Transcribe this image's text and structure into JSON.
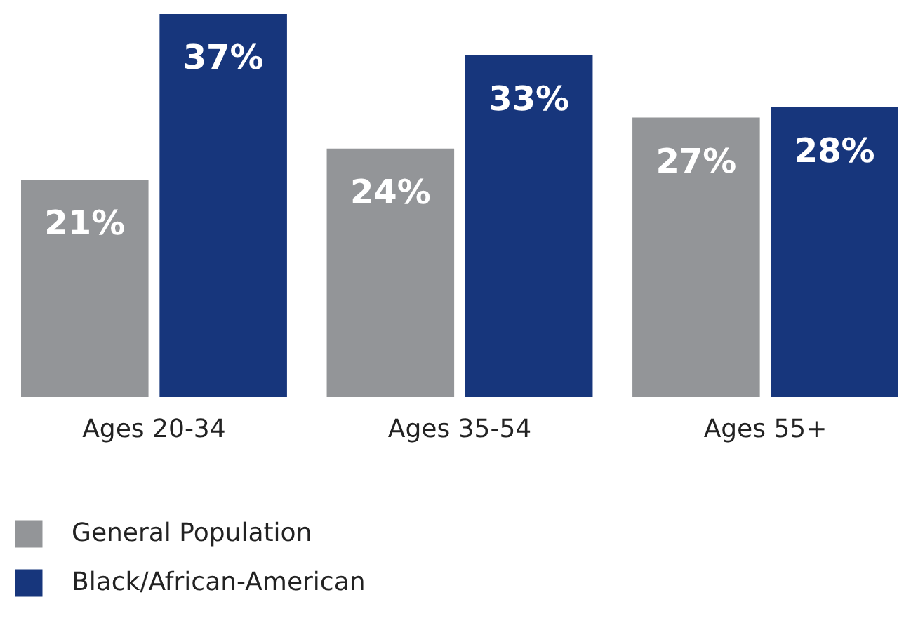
{
  "chart_data": {
    "type": "bar",
    "categories": [
      "Ages 20-34",
      "Ages 35-54",
      "Ages 55+"
    ],
    "series": [
      {
        "name": "General Population",
        "color": "#939598",
        "values": [
          21,
          24,
          27
        ],
        "value_labels": [
          "21%",
          "24%",
          "27%"
        ]
      },
      {
        "name": "Black/African-American",
        "color": "#17367c",
        "values": [
          37,
          33,
          28
        ],
        "value_labels": [
          "37%",
          "33%",
          "28%"
        ]
      }
    ],
    "legend": "bottom left",
    "tick_labels": "x"
  }
}
